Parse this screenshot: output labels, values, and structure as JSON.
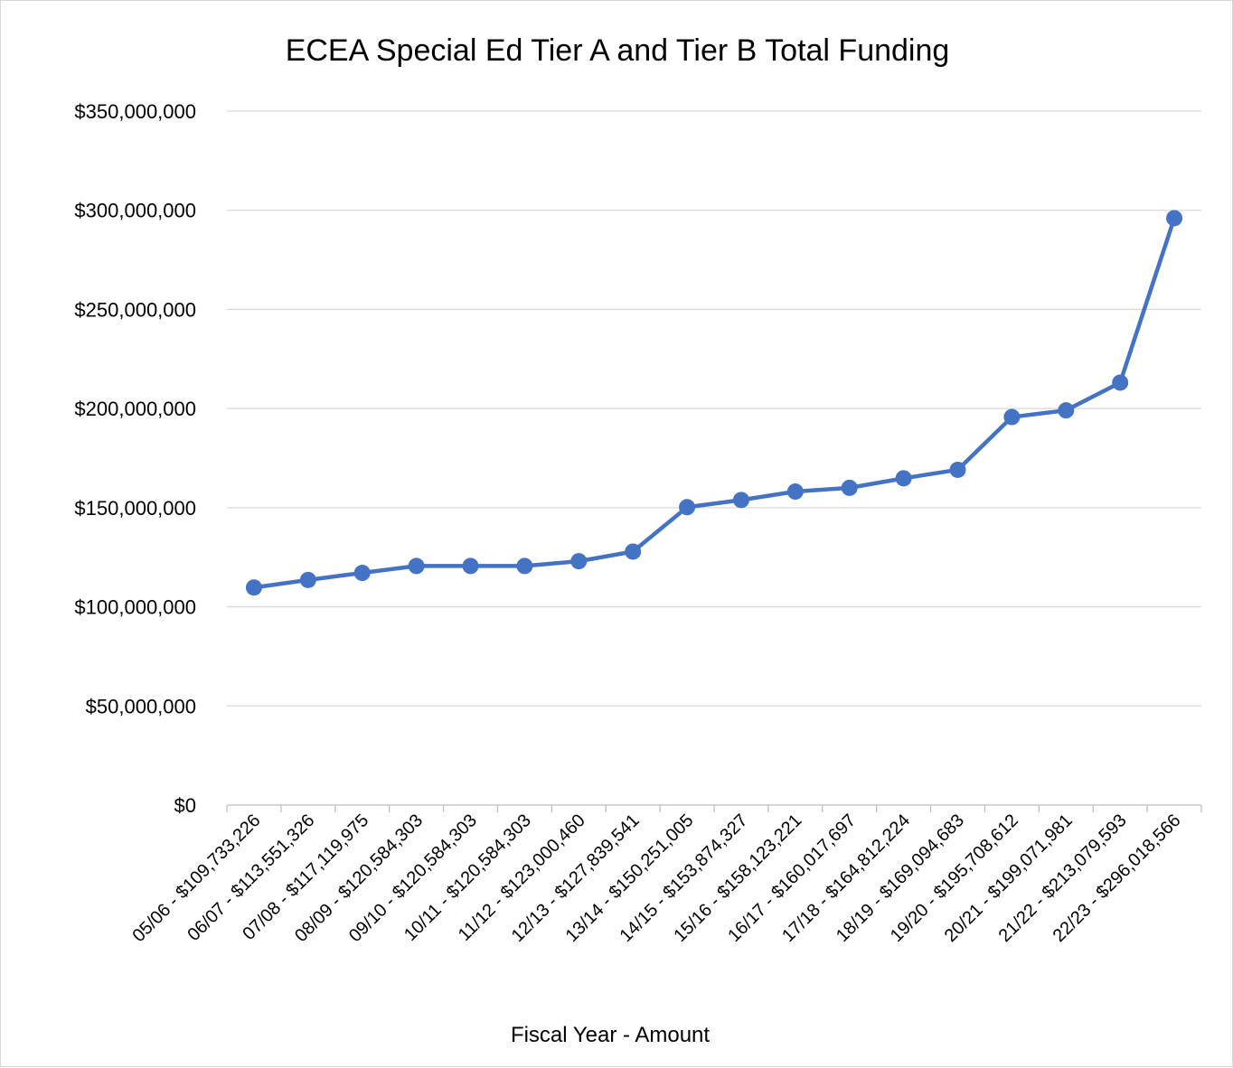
{
  "chart_data": {
    "type": "line",
    "title": "ECEA Special Ed Tier A and Tier B Total Funding",
    "xlabel": "Fiscal Year - Amount",
    "ylabel": "",
    "ylim": [
      0,
      350000000
    ],
    "y_ticks": [
      "$0",
      "$50,000,000",
      "$100,000,000",
      "$150,000,000",
      "$200,000,000",
      "$250,000,000",
      "$300,000,000",
      "$350,000,000"
    ],
    "y_tick_values": [
      0,
      50000000,
      100000000,
      150000000,
      200000000,
      250000000,
      300000000,
      350000000
    ],
    "grid": true,
    "legend": "none",
    "line_color": "#4472c4",
    "categories": [
      "05/06 - $109,733,226",
      "06/07 - $113,551,326",
      "07/08 - $117,119,975",
      "08/09 - $120,584,303",
      "09/10 - $120,584,303",
      "10/11 - $120,584,303",
      "11/12 - $123,000,460",
      "12/13 - $127,839,541",
      "13/14 - $150,251,005",
      "14/15 - $153,874,327",
      "15/16 - $158,123,221",
      "16/17 - $160,017,697",
      "17/18 - $164,812,224",
      "18/19 - $169,094,683",
      "19/20 - $195,708,612",
      "20/21 - $199,071,981",
      "21/22 - $213,079,593",
      "22/23 - $296,018,566"
    ],
    "values": [
      109733226,
      113551326,
      117119975,
      120584303,
      120584303,
      120584303,
      123000460,
      127839541,
      150251005,
      153874327,
      158123221,
      160017697,
      164812224,
      169094683,
      195708612,
      199071981,
      213079593,
      296018566
    ]
  }
}
